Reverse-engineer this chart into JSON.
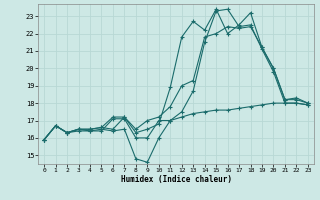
{
  "xlabel": "Humidex (Indice chaleur)",
  "bg_color": "#cde8e5",
  "line_color": "#1a6b6b",
  "grid_color": "#b8d8d5",
  "xlim": [
    -0.5,
    23.5
  ],
  "ylim": [
    14.5,
    23.7
  ],
  "yticks": [
    15,
    16,
    17,
    18,
    19,
    20,
    21,
    22,
    23
  ],
  "xticks": [
    0,
    1,
    2,
    3,
    4,
    5,
    6,
    7,
    8,
    9,
    10,
    11,
    12,
    13,
    14,
    15,
    16,
    17,
    18,
    19,
    20,
    21,
    22,
    23
  ],
  "x": [
    0,
    1,
    2,
    3,
    4,
    5,
    6,
    7,
    8,
    9,
    10,
    11,
    12,
    13,
    14,
    15,
    16,
    17,
    18,
    19,
    20,
    21,
    22,
    23
  ],
  "lines": [
    [
      15.9,
      16.7,
      16.3,
      16.5,
      16.4,
      16.5,
      16.4,
      16.5,
      14.8,
      14.6,
      16.0,
      17.0,
      17.5,
      18.7,
      21.5,
      23.3,
      23.4,
      22.4,
      22.5,
      21.1,
      19.8,
      18.0,
      18.0,
      17.9
    ],
    [
      15.9,
      16.7,
      16.3,
      16.4,
      16.4,
      16.4,
      17.1,
      17.1,
      16.0,
      16.0,
      17.0,
      17.0,
      17.2,
      17.4,
      17.5,
      17.6,
      17.6,
      17.7,
      17.8,
      17.9,
      18.0,
      18.0,
      18.0,
      17.9
    ],
    [
      15.9,
      16.7,
      16.3,
      16.5,
      16.5,
      16.6,
      17.2,
      17.2,
      16.3,
      16.5,
      16.8,
      18.9,
      21.8,
      22.7,
      22.2,
      23.4,
      22.0,
      22.5,
      23.2,
      21.2,
      20.0,
      18.2,
      18.2,
      18.0
    ],
    [
      15.9,
      16.7,
      16.3,
      16.5,
      16.5,
      16.6,
      16.5,
      17.2,
      16.5,
      17.0,
      17.2,
      17.8,
      19.0,
      19.3,
      21.8,
      22.0,
      22.4,
      22.3,
      22.4,
      21.2,
      20.0,
      18.2,
      18.3,
      18.0
    ]
  ]
}
